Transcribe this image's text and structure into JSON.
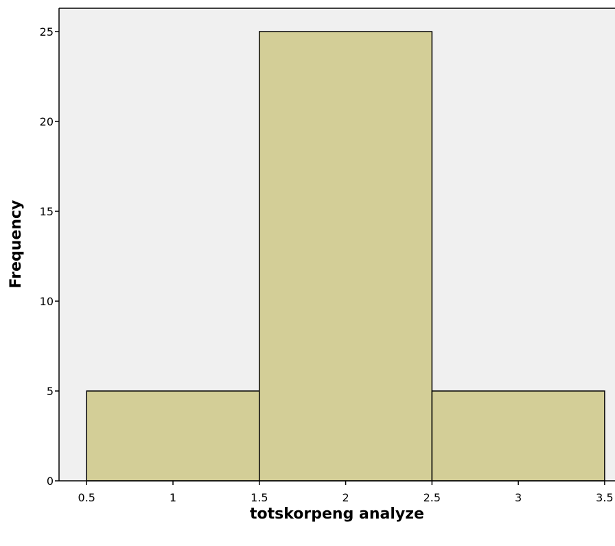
{
  "colors": {
    "plot_background": "#f0f0f0",
    "bar_fill": "#d3ce97",
    "bar_stroke": "#000000",
    "axis": "#000000"
  },
  "chart_data": {
    "type": "bar",
    "subtype": "histogram",
    "xlabel": "totskorpeng analyze",
    "ylabel": "Frequency",
    "bins": [
      {
        "start": 0.5,
        "end": 1.5,
        "value": 5
      },
      {
        "start": 1.5,
        "end": 2.5,
        "value": 25
      },
      {
        "start": 2.5,
        "end": 3.5,
        "value": 5
      }
    ],
    "xlim": [
      0.34,
      3.56
    ],
    "ylim": [
      0,
      26.3
    ],
    "x_ticks": [
      0.5,
      1,
      1.5,
      2,
      2.5,
      3,
      3.5
    ],
    "x_tick_labels": [
      "0.5",
      "1",
      "1.5",
      "2",
      "2.5",
      "3",
      "3.5"
    ],
    "y_ticks": [
      0,
      5,
      10,
      15,
      20,
      25
    ],
    "y_tick_labels": [
      "0",
      "5",
      "10",
      "15",
      "20",
      "25"
    ],
    "grid": false,
    "legend": "none"
  }
}
